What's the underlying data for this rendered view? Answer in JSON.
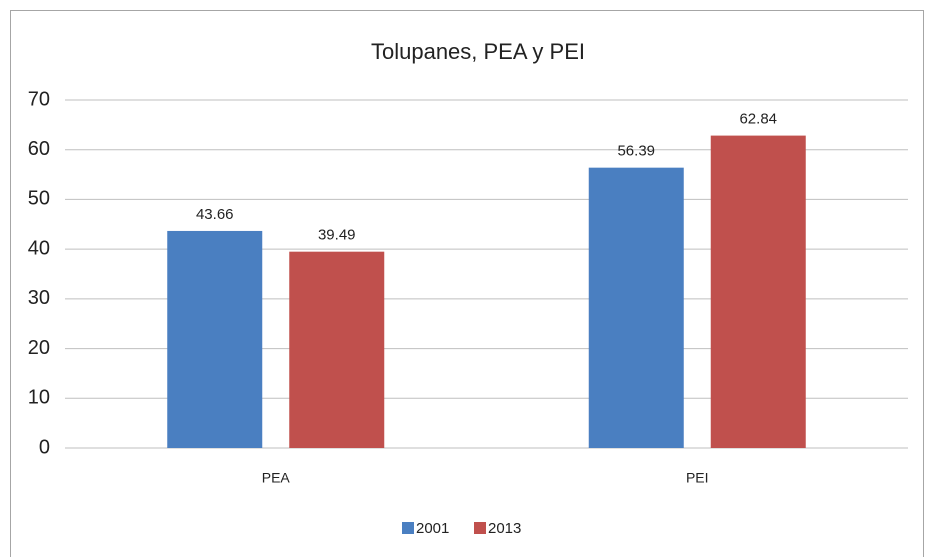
{
  "chart_data": {
    "type": "bar",
    "title": "Tolupanes, PEA y PEI",
    "categories": [
      "PEA",
      "PEI"
    ],
    "series": [
      {
        "name": "2001",
        "color": "#4a7fc1",
        "values": [
          43.66,
          56.39
        ]
      },
      {
        "name": "2013",
        "color": "#c0504d",
        "values": [
          39.49,
          62.84
        ]
      }
    ],
    "ylim": [
      0,
      70
    ],
    "yticks": [
      0,
      10,
      20,
      30,
      40,
      50,
      60,
      70
    ],
    "grid": true,
    "legend": "bottom"
  }
}
